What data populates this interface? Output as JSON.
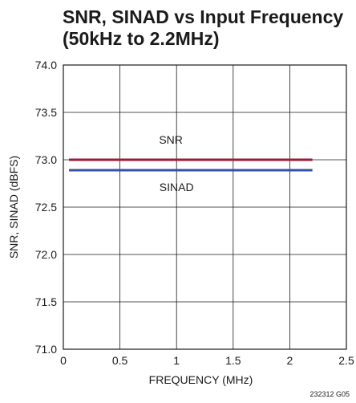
{
  "chart_data": {
    "type": "line",
    "title_lines": [
      "SNR, SINAD vs Input Frequency",
      "(50kHz to 2.2MHz)"
    ],
    "xlabel": "FREQUENCY (MHz)",
    "ylabel": "SNR, SINAD (dBFS)",
    "xlim": [
      0,
      2.5
    ],
    "ylim": [
      71.0,
      74.0
    ],
    "x_ticks": [
      "0",
      "0.5",
      "1",
      "1.5",
      "2",
      "2.5"
    ],
    "y_ticks": [
      "71.0",
      "71.5",
      "72.0",
      "72.5",
      "73.0",
      "73.5",
      "74.0"
    ],
    "grid": true,
    "legend": "inline labels",
    "series": [
      {
        "name": "SNR",
        "color": "#9b1b3a",
        "x": [
          0.05,
          2.2
        ],
        "y": [
          73.0,
          73.0
        ]
      },
      {
        "name": "SINAD",
        "color": "#3550a6",
        "x": [
          0.05,
          2.2
        ],
        "y": [
          72.89,
          72.89
        ]
      }
    ],
    "annotations": [
      {
        "text": "SNR",
        "x": 0.95,
        "y": 73.17
      },
      {
        "text": "SINAD",
        "x": 1.0,
        "y": 72.67
      }
    ],
    "footnote": "232312 G05"
  }
}
